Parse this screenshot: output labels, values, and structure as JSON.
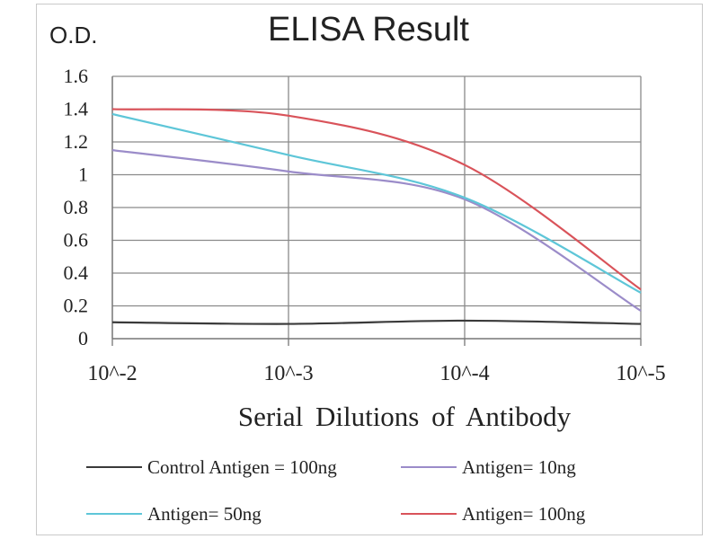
{
  "chart_data": {
    "type": "line",
    "title": "ELISA Result",
    "ylabel": "O.D.",
    "xlabel": "Serial Dilutions  of Antibody",
    "x_tick_labels": [
      "10^-2",
      "10^-3",
      "10^-4",
      "10^-5"
    ],
    "y_tick_labels": [
      "0",
      "0.2",
      "0.4",
      "0.6",
      "0.8",
      "1",
      "1.2",
      "1.4",
      "1.6"
    ],
    "ylim": [
      0,
      1.6
    ],
    "grid": true,
    "legend_position": "bottom",
    "series": [
      {
        "name": "Control Antigen = 100ng",
        "color": "#3a3a3a",
        "x": [
          "10^-2",
          "10^-3",
          "10^-4",
          "10^-5"
        ],
        "values": [
          0.1,
          0.09,
          0.11,
          0.09
        ]
      },
      {
        "name": "Antigen= 10ng",
        "color": "#9b8cc9",
        "x": [
          "10^-2",
          "10^-3",
          "10^-4",
          "10^-5"
        ],
        "values": [
          1.15,
          1.02,
          0.85,
          0.17
        ]
      },
      {
        "name": "Antigen= 50ng",
        "color": "#5ec6d8",
        "x": [
          "10^-2",
          "10^-3",
          "10^-4",
          "10^-5"
        ],
        "values": [
          1.37,
          1.12,
          0.86,
          0.28
        ]
      },
      {
        "name": "Antigen= 100ng",
        "color": "#d9535a",
        "x": [
          "10^-2",
          "10^-3",
          "10^-4",
          "10^-5"
        ],
        "values": [
          1.4,
          1.36,
          1.06,
          0.3
        ]
      }
    ]
  }
}
